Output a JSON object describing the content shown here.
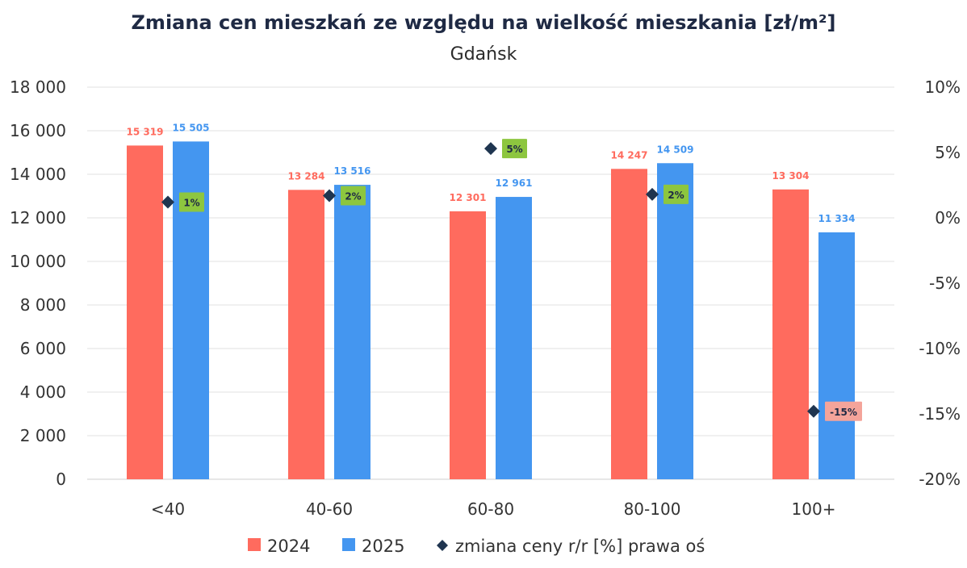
{
  "chart_data": {
    "type": "bar",
    "title": "Zmiana cen mieszkań ze względu na wielkość mieszkania [zł/m²]",
    "subtitle": "Gdańsk",
    "categories": [
      "<40",
      "40-60",
      "60-80",
      "80-100",
      "100+"
    ],
    "series": [
      {
        "name": "2024",
        "color": "#ff6b5e",
        "values": [
          15319,
          13284,
          12301,
          14247,
          13304
        ],
        "labels": [
          "15 319",
          "13 284",
          "12 301",
          "14 247",
          "13 304"
        ]
      },
      {
        "name": "2025",
        "color": "#4496f0",
        "values": [
          15505,
          13516,
          12961,
          14509,
          11334
        ],
        "labels": [
          "15 505",
          "13 516",
          "12 961",
          "14 509",
          "11 334"
        ]
      }
    ],
    "change": {
      "name": "zmiana ceny r/r [%] prawa oś",
      "marker_color": "#1f3550",
      "values": [
        1.2,
        1.7,
        5.3,
        1.8,
        -14.8
      ],
      "labels": [
        "1%",
        "2%",
        "5%",
        "2%",
        "-15%"
      ],
      "label_bg": [
        "#8dc63f",
        "#8dc63f",
        "#8dc63f",
        "#8dc63f",
        "#f4a49a"
      ]
    },
    "ylim": [
      0,
      18000
    ],
    "yticks": [
      0,
      2000,
      4000,
      6000,
      8000,
      10000,
      12000,
      14000,
      16000,
      18000
    ],
    "ytick_labels": [
      "0",
      "2 000",
      "4 000",
      "6 000",
      "8 000",
      "10 000",
      "12 000",
      "14 000",
      "16 000",
      "18 000"
    ],
    "y2lim": [
      -20,
      10
    ],
    "y2ticks": [
      -20,
      -15,
      -10,
      -5,
      0,
      5,
      10
    ],
    "y2tick_labels": [
      "-20%",
      "-15%",
      "-10%",
      "-5%",
      "0%",
      "5%",
      "10%"
    ],
    "grid": true,
    "legend_position": "bottom",
    "legend": [
      "2024",
      "2025",
      "zmiana ceny r/r [%] prawa oś"
    ]
  }
}
